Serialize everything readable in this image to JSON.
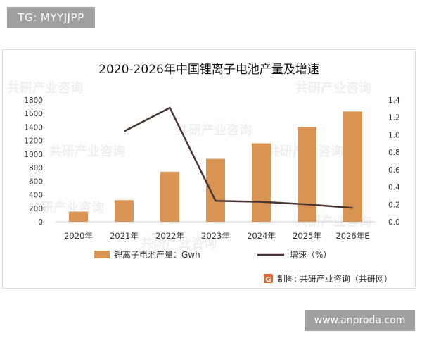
{
  "top_tag": "TG: MYYJJPP",
  "footer_site": "www.anproda.com",
  "source_label": "制图: 共研产业咨询（共研网）",
  "watermark_text": "共研产业咨询",
  "colors": {
    "bar": "#d99352",
    "line": "#4a3532",
    "axis_text": "#333333",
    "source_icon": "#e9622a"
  },
  "chart_data": {
    "type": "bar",
    "title": "2020-2026年中国锂离子电池产量及增速",
    "categories": [
      "2020年",
      "2021年",
      "2022年",
      "2023年",
      "2024年",
      "2025年",
      "2026年E"
    ],
    "series": [
      {
        "name": "锂离子电池产量：Gwh",
        "type": "bar",
        "axis": "left",
        "values": [
          150,
          320,
          740,
          930,
          1160,
          1400,
          1630
        ]
      },
      {
        "name": "增速（%）",
        "type": "line",
        "axis": "right",
        "values": [
          null,
          1.04,
          1.31,
          0.24,
          0.23,
          0.2,
          0.16
        ]
      }
    ],
    "y_left": {
      "min": 0,
      "max": 1800,
      "step": 200
    },
    "y_right": {
      "min": 0,
      "max": 1.4,
      "step": 0.2
    },
    "legend_position": "bottom",
    "grid": false
  }
}
